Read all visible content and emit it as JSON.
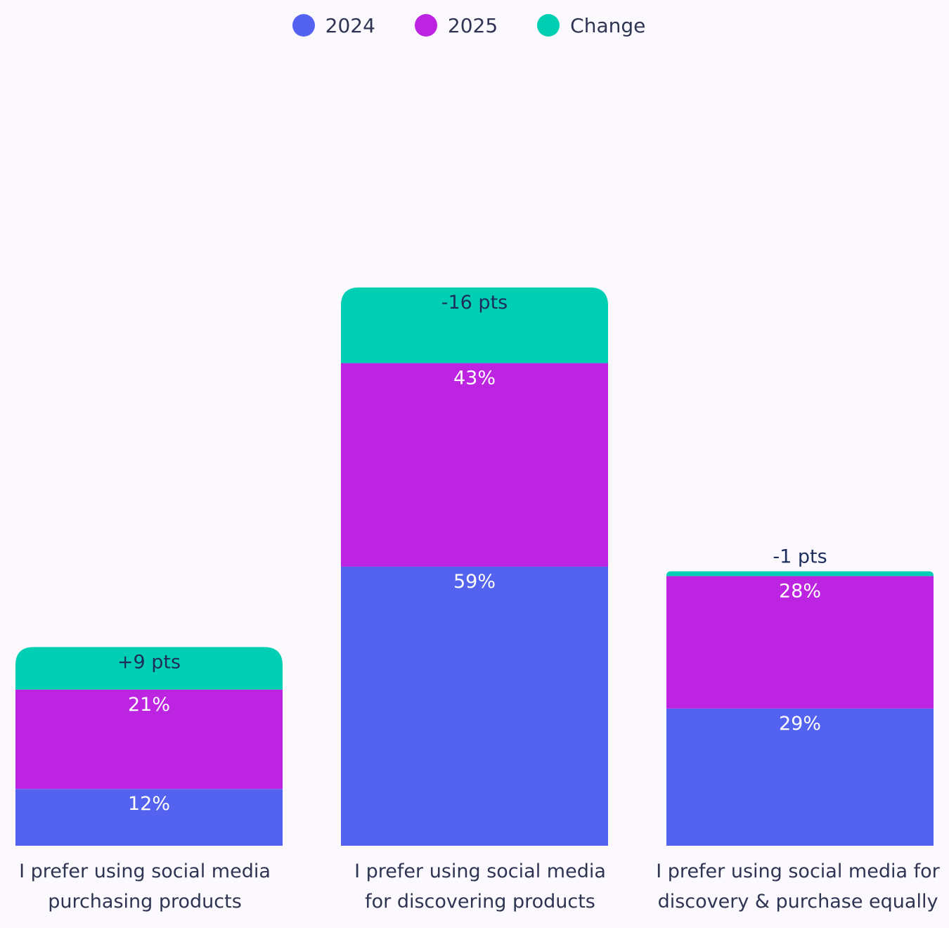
{
  "chart_data": {
    "type": "bar",
    "stacked": true,
    "legend_position": "top-center",
    "legend": [
      "2024",
      "2025",
      "Change"
    ],
    "colors": {
      "2024": "#5462f0",
      "2025": "#bd24e2",
      "Change": "#00cfb3"
    },
    "categories": [
      {
        "line1": "I prefer using social media",
        "line2": "purchasing products"
      },
      {
        "line1": "I prefer using social media",
        "line2": "for discovering products"
      },
      {
        "line1": "I prefer using social media for",
        "line2": "discovery & purchase equally"
      }
    ],
    "series": [
      {
        "name": "2024",
        "values": [
          12,
          59,
          29
        ],
        "labels": [
          "12%",
          "59%",
          "29%"
        ]
      },
      {
        "name": "2025",
        "values": [
          21,
          43,
          28
        ],
        "labels": [
          "21%",
          "43%",
          "28%"
        ]
      },
      {
        "name": "Change",
        "values": [
          9,
          16,
          1
        ],
        "labels": [
          "+9 pts",
          "-16 pts",
          "-1 pts"
        ]
      }
    ]
  }
}
